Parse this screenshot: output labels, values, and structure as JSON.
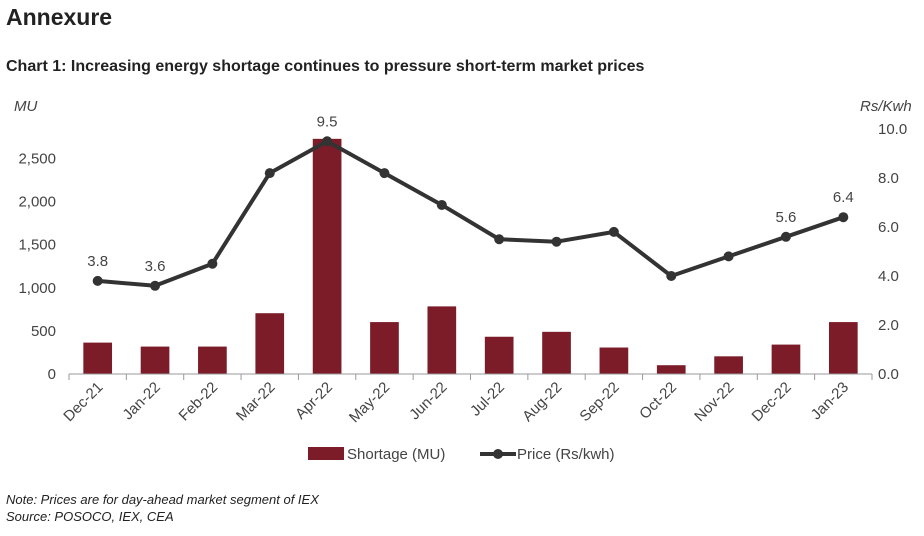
{
  "heading": "Annexure",
  "chart_data": {
    "type": "bar+line",
    "title": "Chart 1: Increasing energy shortage continues to pressure short-term market prices",
    "categories": [
      "Dec-21",
      "Jan-22",
      "Feb-22",
      "Mar-22",
      "Apr-22",
      "May-22",
      "Jun-22",
      "Jul-22",
      "Aug-22",
      "Sep-22",
      "Oct-22",
      "Nov-22",
      "Dec-22",
      "Jan-23"
    ],
    "series": [
      {
        "name": "Shortage (MU)",
        "type": "bar",
        "axis": "left",
        "color": "#7B1C28",
        "values": [
          364,
          318,
          318,
          705,
          2727,
          602,
          784,
          432,
          489,
          307,
          102,
          205,
          341,
          602
        ]
      },
      {
        "name": "Price (Rs/kwh)",
        "type": "line",
        "axis": "right",
        "color": "#333333",
        "values": [
          3.8,
          3.6,
          4.5,
          8.2,
          9.5,
          8.2,
          6.9,
          5.5,
          5.4,
          5.8,
          4.0,
          4.8,
          5.6,
          6.4
        ],
        "data_labels": {
          "0": "3.8",
          "1": "3.6",
          "4": "9.5",
          "12": "5.6",
          "13": "6.4"
        }
      }
    ],
    "ylabel_left": "MU",
    "ylabel_right": "Rs/Kwh",
    "yticks_left": [
      "0",
      "500",
      "1,000",
      "1,500",
      "2,000",
      "2,500"
    ],
    "yticks_right": [
      "0.0",
      "2.0",
      "4.0",
      "6.0",
      "8.0",
      "10.0"
    ],
    "ylim_left": [
      0,
      2841
    ],
    "ylim_right": [
      0,
      10
    ],
    "grid": false,
    "legend": "bottom"
  },
  "note": "Note: Prices are for day-ahead market segment of IEX",
  "source": "Source: POSOCO, IEX, CEA"
}
